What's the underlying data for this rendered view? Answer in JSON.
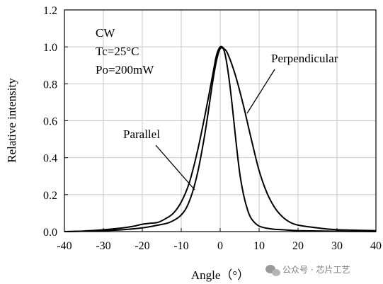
{
  "chart_data": {
    "type": "line",
    "xlabel": "Angle（°）",
    "ylabel": "Relative intensity",
    "xlim": [
      -40,
      40
    ],
    "ylim": [
      0,
      1.2
    ],
    "xticks": [
      "-40",
      "-30",
      "-20",
      "-10",
      "0",
      "10",
      "20",
      "30",
      "40"
    ],
    "yticks": [
      "0.0",
      "0.2",
      "0.4",
      "0.6",
      "0.8",
      "1.0",
      "1.2"
    ],
    "grid": true,
    "conditions": [
      "CW",
      "Tc=25°C",
      "Po=200mW"
    ],
    "series": [
      {
        "name": "Parallel",
        "x": [
          -40,
          -30,
          -25,
          -20,
          -16,
          -13,
          -10,
          -8,
          -6,
          -4,
          -2,
          -1,
          0,
          1,
          2,
          3,
          4,
          5,
          6,
          7,
          8,
          10,
          13,
          16,
          20,
          30,
          40
        ],
        "y": [
          0.0,
          0.005,
          0.01,
          0.02,
          0.035,
          0.05,
          0.09,
          0.16,
          0.3,
          0.52,
          0.8,
          0.92,
          0.99,
          0.98,
          0.87,
          0.7,
          0.5,
          0.32,
          0.2,
          0.12,
          0.07,
          0.03,
          0.015,
          0.01,
          0.005,
          0.002,
          0.0
        ]
      },
      {
        "name": "Perpendicular",
        "x": [
          -40,
          -35,
          -30,
          -25,
          -22,
          -20,
          -18,
          -16,
          -14,
          -12,
          -10,
          -8,
          -6,
          -4,
          -2,
          -1,
          0,
          1,
          2,
          4,
          6,
          8,
          10,
          12,
          14,
          16,
          18,
          20,
          25,
          30,
          40
        ],
        "y": [
          0.0,
          0.003,
          0.01,
          0.02,
          0.03,
          0.04,
          0.045,
          0.05,
          0.07,
          0.1,
          0.16,
          0.26,
          0.42,
          0.62,
          0.84,
          0.95,
          1.0,
          0.99,
          0.96,
          0.84,
          0.68,
          0.5,
          0.33,
          0.21,
          0.13,
          0.08,
          0.05,
          0.035,
          0.02,
          0.01,
          0.005
        ]
      }
    ]
  },
  "watermark": {
    "text": "公众号 · 芯片工艺",
    "icon": "wechat-icon"
  }
}
